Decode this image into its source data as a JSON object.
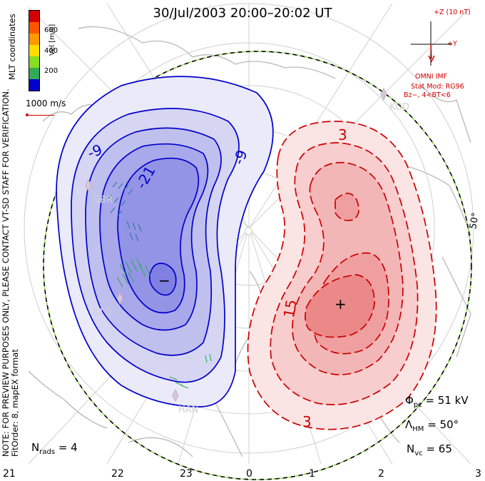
{
  "title": "30/Jul/2003 20:00–20:02 UT",
  "coord_label": "MLT coordinates",
  "note_line1": "NOTE: FOR PREVIEW PURPOSES ONLY, PLEASE CONTACT VT-SD STAFF FOR VERIFICATION.",
  "note_line2": "FitOrder: 8, mapEX format",
  "velocity_scale": "1000 m/s",
  "legend": {
    "title": "Vel [m/s]",
    "ticks": [
      "600",
      "400",
      "200"
    ],
    "colors": [
      "#d40000",
      "#ff5500",
      "#ff9900",
      "#ffdd00",
      "#88dd22",
      "#33aa55",
      "#337799",
      "#0000cc"
    ]
  },
  "imf": {
    "scale": "+Z (10 nT)",
    "axis_y": "+Y",
    "source": "OMNI IMF",
    "model": "Stat Mod: RG96",
    "condition": "Bz−, 4<BT<6"
  },
  "stats": {
    "phi_symbol": "Φ",
    "phi_sub": "pc",
    "phi_value": "= 51 kV",
    "lambda_symbol": "Λ",
    "lambda_sub": "HM",
    "lambda_value": "= 50°",
    "nvc_symbol": "N",
    "nvc_sub": "vc",
    "nvc_value": "= 65",
    "nrads_symbol": "N",
    "nrads_sub": "rads",
    "nrads_value": "= 4"
  },
  "mlt_ticks": [
    "21",
    "22",
    "23",
    "0",
    "1",
    "2",
    "3"
  ],
  "lat_label": "50°",
  "contour_labels": {
    "neg_outer": "-9",
    "neg_right": "-9",
    "neg_inner": "-21",
    "neg_min": "−",
    "pos_outer": "3",
    "pos_bottom": "3",
    "pos_inner": "15",
    "pos_max": "+"
  },
  "stations": [
    "GBR",
    "STO",
    "HAN",
    "KOD"
  ],
  "colors": {
    "negative_contour": "#0000cc",
    "positive_contour": "#cc0000",
    "negative_fill": "#3a3ad8",
    "positive_fill": "#e83a3a",
    "heppner_boundary": "#88dd44",
    "coastline": "#b8b8b8"
  }
}
